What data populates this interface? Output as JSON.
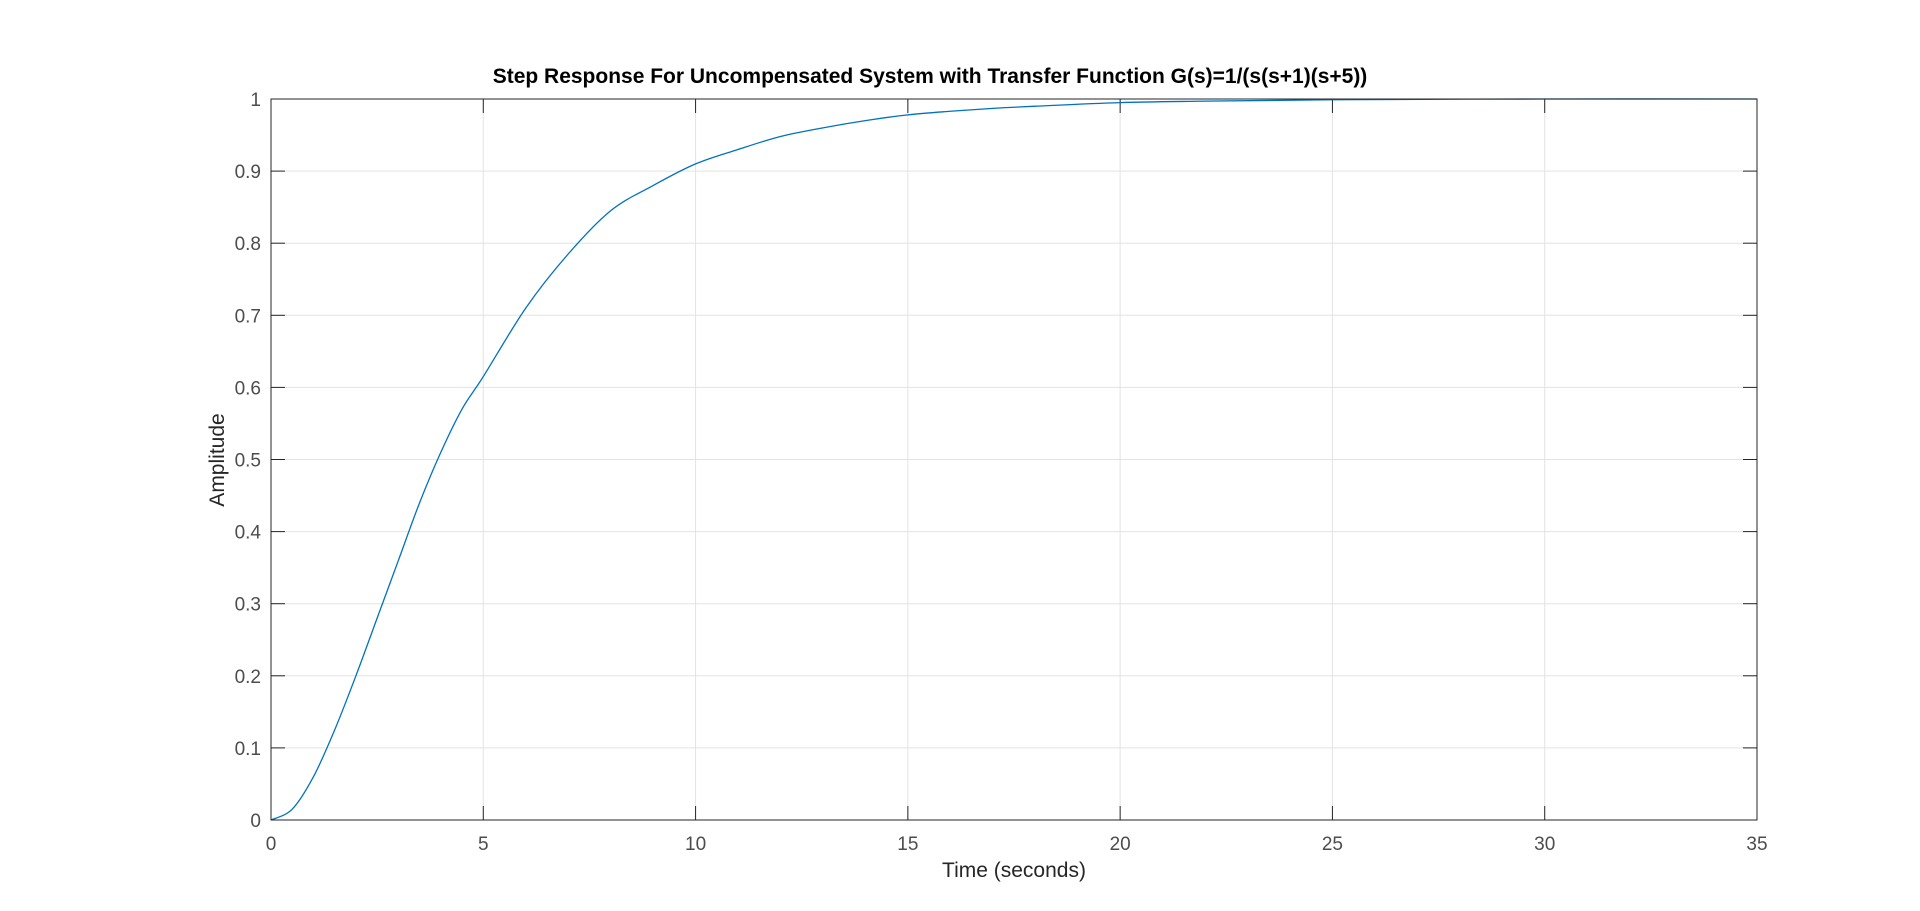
{
  "chart_data": {
    "type": "line",
    "title": "Step Response For Uncompensated System with Transfer Function G(s)=1/(s(s+1)(s+5))",
    "xlabel": "Time (seconds)",
    "ylabel": "Amplitude",
    "xlim": [
      0,
      35
    ],
    "ylim": [
      0,
      1
    ],
    "xticks": [
      0,
      5,
      10,
      15,
      20,
      25,
      30,
      35
    ],
    "yticks": [
      0,
      0.1,
      0.2,
      0.3,
      0.4,
      0.5,
      0.6,
      0.7,
      0.8,
      0.9,
      1
    ],
    "xtick_labels": [
      "0",
      "5",
      "10",
      "15",
      "20",
      "25",
      "30",
      "35"
    ],
    "ytick_labels": [
      "0",
      "0.1",
      "0.2",
      "0.3",
      "0.4",
      "0.5",
      "0.6",
      "0.7",
      "0.8",
      "0.9",
      "1"
    ],
    "grid": true,
    "series": [
      {
        "color": "#0072bd",
        "x": [
          0,
          0.5,
          1,
          1.5,
          2,
          2.5,
          3,
          3.5,
          4,
          4.5,
          5,
          6,
          7,
          8,
          9,
          10,
          11,
          12,
          13,
          14,
          15,
          16,
          17,
          18,
          20,
          22,
          25,
          30,
          35
        ],
        "y": [
          0,
          0.015,
          0.06,
          0.125,
          0.2,
          0.28,
          0.36,
          0.44,
          0.51,
          0.57,
          0.615,
          0.71,
          0.785,
          0.845,
          0.88,
          0.91,
          0.93,
          0.948,
          0.96,
          0.97,
          0.978,
          0.983,
          0.987,
          0.99,
          0.995,
          0.997,
          0.999,
          1.0,
          1.0
        ]
      }
    ]
  }
}
